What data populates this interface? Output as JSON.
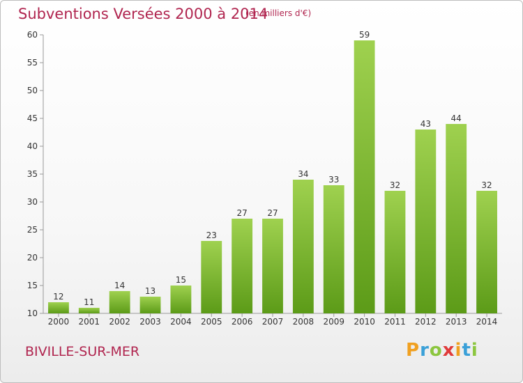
{
  "header": {
    "title": "Subventions Versées 2000 à 2014",
    "subtitle": "(en milliers d'€)"
  },
  "footer": {
    "commune": "BIVILLE-SUR-MER",
    "logo_letters": [
      "P",
      "r",
      "o",
      "x",
      "i",
      "t",
      "i"
    ],
    "logo_colors": [
      "#f0a020",
      "#3aa0d8",
      "#8cc63f",
      "#e03a3a",
      "#f0a020",
      "#3aa0d8",
      "#8cc63f"
    ]
  },
  "chart_data": {
    "type": "bar",
    "title": "Subventions Versées 2000 à 2014",
    "subtitle": "(en milliers d'€)",
    "categories": [
      "2000",
      "2001",
      "2002",
      "2003",
      "2004",
      "2005",
      "2006",
      "2007",
      "2008",
      "2009",
      "2010",
      "2011",
      "2012",
      "2013",
      "2014"
    ],
    "values": [
      12,
      11,
      14,
      13,
      15,
      23,
      27,
      27,
      34,
      33,
      59,
      32,
      43,
      44,
      32
    ],
    "ylim": [
      10,
      60
    ],
    "yticks": [
      10,
      15,
      20,
      25,
      30,
      35,
      40,
      45,
      50,
      55,
      60
    ],
    "grid": false,
    "bar_color_top": "#9fd14f",
    "bar_color_bottom": "#5c9b18"
  }
}
